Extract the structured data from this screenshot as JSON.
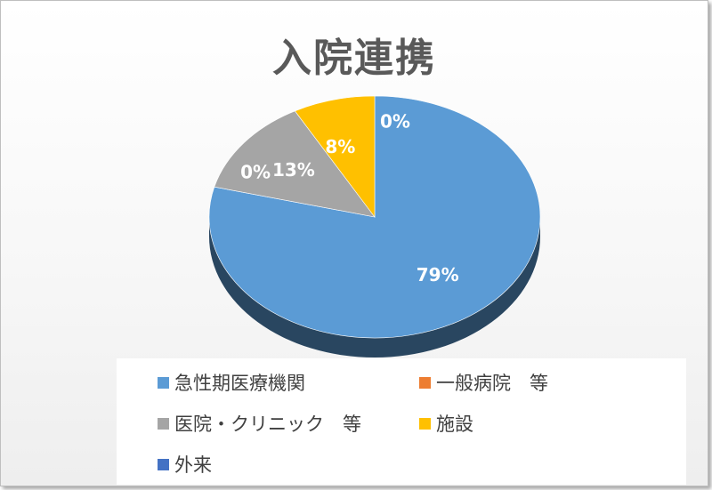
{
  "chart_data": {
    "type": "pie",
    "title": "入院連携",
    "categories": [
      "急性期医療機関",
      "一般病院　等",
      "医院・クリニック　等",
      "施設",
      "外来"
    ],
    "values": [
      79,
      0,
      13,
      8,
      0
    ],
    "value_labels": [
      "79%",
      "0%",
      "13%",
      "8%",
      "0%"
    ],
    "colors": [
      "#5b9bd5",
      "#ed7d31",
      "#a5a5a5",
      "#ffc000",
      "#4472c4"
    ],
    "legend_position": "bottom",
    "style": "3d"
  }
}
